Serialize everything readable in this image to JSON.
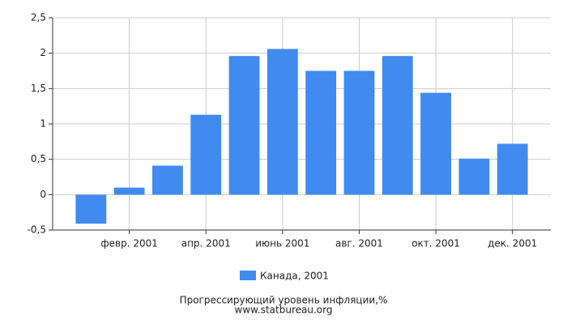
{
  "chart_data": {
    "type": "bar",
    "title": "Прогрессирующий уровень инфляции,%",
    "source": "www.statbureau.org",
    "categories": [
      null,
      "февр. 2001",
      null,
      "апр. 2001",
      null,
      "июнь 2001",
      null,
      "авг. 2001",
      null,
      "окт. 2001",
      null,
      "дек. 2001"
    ],
    "series": [
      {
        "name": "Канада, 2001",
        "color": "#418bf0",
        "values": [
          -0.41,
          0.1,
          0.41,
          1.13,
          1.96,
          2.06,
          1.75,
          1.75,
          1.96,
          1.44,
          0.51,
          0.72
        ]
      }
    ],
    "ylim": [
      -0.5,
      2.5
    ],
    "yticks": [
      {
        "value": -0.5,
        "label": "-0,5"
      },
      0,
      {
        "value": 0.5,
        "label": "0,5"
      },
      1,
      {
        "value": 1.5,
        "label": "1,5"
      },
      2,
      {
        "value": 2.5,
        "label": "2,5"
      }
    ],
    "grid": true
  }
}
